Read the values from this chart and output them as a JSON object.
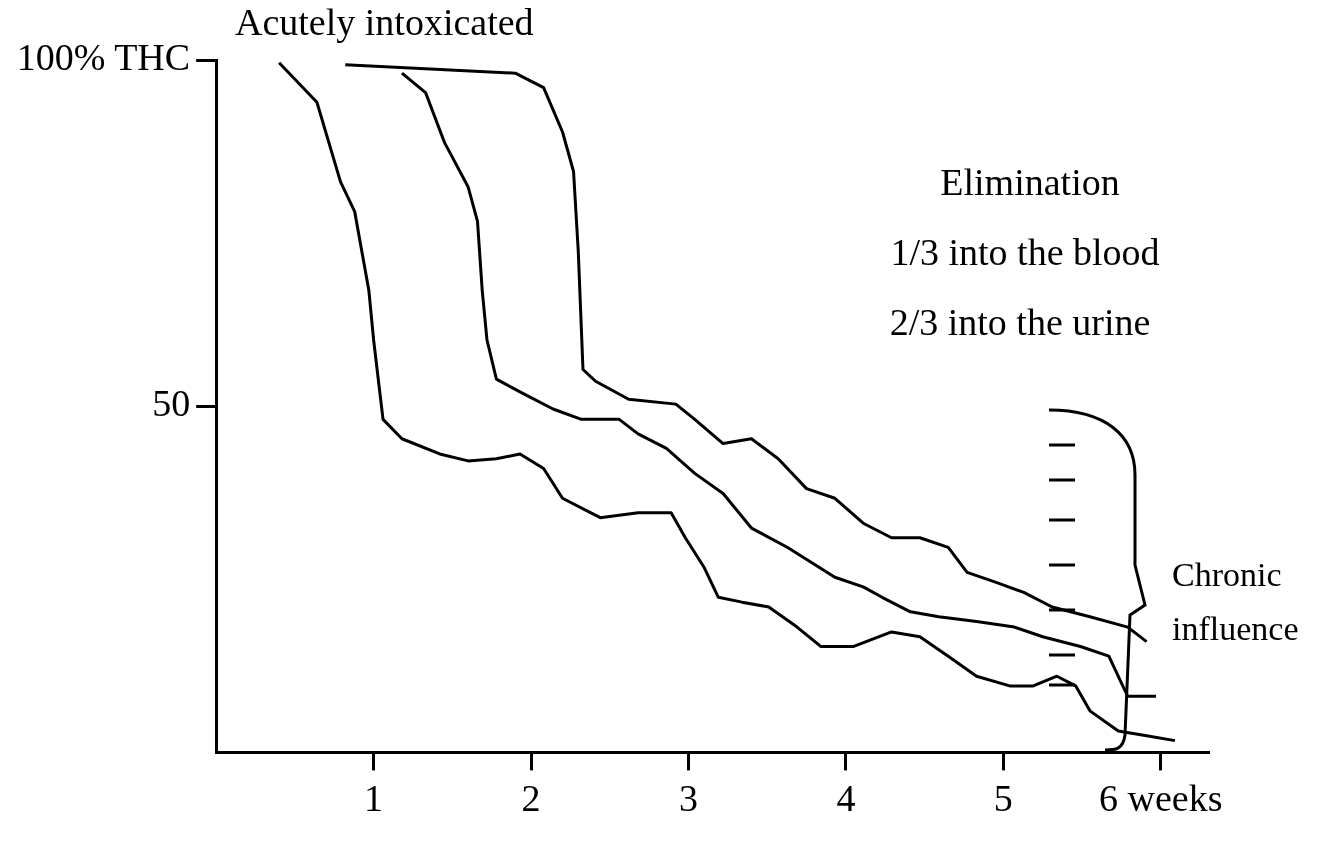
{
  "chart_data": {
    "type": "line",
    "xlim": [
      0,
      6.3
    ],
    "xticks": [
      1,
      2,
      3,
      4,
      5,
      {
        "value": 6,
        "label": "6 weeks"
      }
    ],
    "ylim": [
      0,
      100
    ],
    "yticks": [
      50,
      {
        "value": 100,
        "label": "100% THC"
      }
    ],
    "grid": false,
    "legend": false,
    "marker": "none",
    "line_style": "solid",
    "annotations": [
      "Acutely intoxicated",
      "Elimination",
      "1/3 into the blood",
      "2/3 into the urine",
      "Chronic influence"
    ],
    "series": [
      {
        "color": "#000000",
        "x": [
          0.4,
          0.64,
          0.79,
          0.88,
          0.97,
          1.0,
          1.06,
          1.18,
          1.42,
          1.6,
          1.78,
          1.93,
          2.08,
          2.2,
          2.44,
          2.68,
          2.89,
          2.98,
          3.1,
          3.19,
          3.34,
          3.51,
          3.69,
          3.84,
          4.05,
          4.29,
          4.47,
          4.65,
          4.83,
          5.04,
          5.19,
          5.34,
          5.46,
          5.55,
          5.73,
          5.91,
          6.09
        ],
        "values": [
          99.6,
          93.9,
          82.4,
          78.1,
          66.7,
          59.6,
          48.1,
          45.3,
          43.1,
          42.1,
          42.4,
          43.1,
          41.0,
          36.7,
          33.9,
          34.6,
          34.6,
          31.0,
          26.7,
          22.4,
          21.7,
          21.0,
          18.1,
          15.3,
          15.3,
          17.4,
          16.7,
          13.9,
          11.0,
          9.6,
          9.6,
          11.0,
          9.6,
          6.0,
          3.1,
          2.4,
          1.7
        ]
      },
      {
        "color": "#000000",
        "x": [
          1.18,
          1.33,
          1.45,
          1.6,
          1.66,
          1.69,
          1.72,
          1.78,
          1.96,
          2.14,
          2.32,
          2.56,
          2.68,
          2.86,
          3.04,
          3.22,
          3.4,
          3.63,
          3.93,
          4.11,
          4.23,
          4.41,
          4.59,
          4.83,
          5.07,
          5.25,
          5.49,
          5.67,
          5.79,
          5.97
        ],
        "values": [
          98.1,
          95.3,
          88.1,
          81.7,
          76.7,
          66.7,
          59.6,
          53.9,
          51.7,
          49.6,
          48.1,
          48.1,
          46.0,
          43.9,
          40.3,
          37.4,
          32.4,
          29.6,
          25.3,
          23.9,
          22.4,
          20.3,
          19.6,
          18.9,
          18.1,
          16.7,
          15.3,
          13.9,
          8.1,
          8.1
        ]
      },
      {
        "color": "#000000",
        "x": [
          0.82,
          1.9,
          2.08,
          2.2,
          2.27,
          2.3,
          2.33,
          2.41,
          2.62,
          2.92,
          3.04,
          3.22,
          3.4,
          3.57,
          3.75,
          3.93,
          4.11,
          4.29,
          4.47,
          4.65,
          4.77,
          4.95,
          5.13,
          5.31,
          5.55,
          5.79,
          5.91
        ],
        "values": [
          99.3,
          98.1,
          96.0,
          89.6,
          83.9,
          72.4,
          55.3,
          53.6,
          51.0,
          50.3,
          48.1,
          44.6,
          45.3,
          42.4,
          38.1,
          36.7,
          33.1,
          31.0,
          31.0,
          29.6,
          26.0,
          24.6,
          23.1,
          21.0,
          19.6,
          18.1,
          16.0
        ]
      }
    ]
  }
}
